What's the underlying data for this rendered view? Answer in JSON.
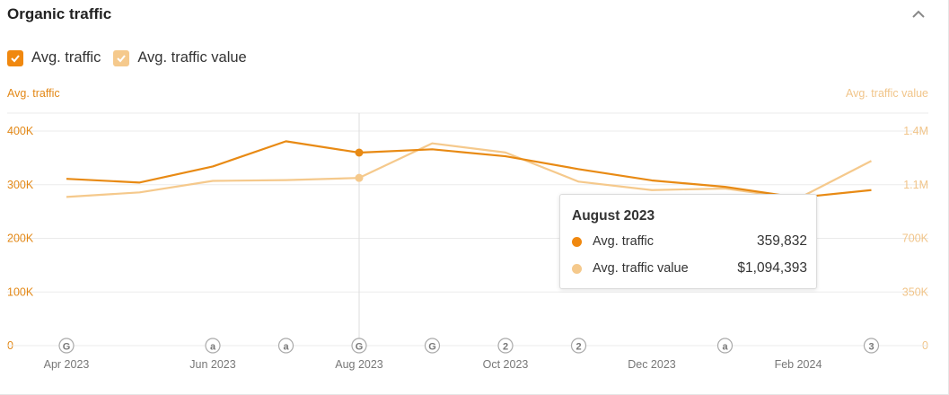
{
  "header": {
    "title": "Organic traffic",
    "collapse_icon": "chevron-up-icon"
  },
  "legend": {
    "items": [
      {
        "label": "Avg. traffic",
        "checked": true,
        "color": "#f0880f"
      },
      {
        "label": "Avg. traffic value",
        "checked": true,
        "color": "#f5c98c"
      }
    ]
  },
  "colors": {
    "traffic": "#e88a14",
    "traffic_value": "#f5c98c",
    "grid": "#ebebeb",
    "right_axis": "#f1c58a",
    "left_axis": "#e38816",
    "tick": "#777777"
  },
  "chart_data": {
    "type": "line",
    "title": "Organic traffic",
    "x_ticks": [
      "Apr 2023",
      "Jun 2023",
      "Aug 2023",
      "Oct 2023",
      "Dec 2023",
      "Feb 2024"
    ],
    "left_axis": {
      "label": "Avg. traffic",
      "ticks": [
        "400K",
        "300K",
        "200K",
        "100K",
        "0"
      ],
      "range": [
        0,
        400000
      ]
    },
    "right_axis": {
      "label": "Avg. traffic value",
      "ticks": [
        "1.4M",
        "1.1M",
        "700K",
        "350K",
        "0"
      ],
      "range": [
        0,
        1400000
      ]
    },
    "x": [
      "Apr 2023",
      "May 2023",
      "Jun 2023",
      "Jul 2023",
      "Aug 2023",
      "Sep 2023",
      "Oct 2023",
      "Nov 2023",
      "Dec 2023",
      "Jan 2024",
      "Feb 2024",
      "Mar 2024"
    ],
    "series": [
      {
        "name": "Avg. traffic",
        "axis": "left",
        "values": [
          311000,
          304000,
          334000,
          381000,
          359832,
          366000,
          353000,
          329000,
          308000,
          296000,
          276000,
          290000
        ]
      },
      {
        "name": "Avg. traffic value",
        "axis": "right",
        "values": [
          970000,
          1000000,
          1075000,
          1080000,
          1094393,
          1320000,
          1260000,
          1070000,
          1015000,
          1025000,
          960000,
          1205000
        ]
      }
    ],
    "annotations": [
      {
        "at": "Apr 2023",
        "label": "G"
      },
      {
        "at": "Jun 2023",
        "label": "a"
      },
      {
        "at": "Jul 2023",
        "label": "a"
      },
      {
        "at": "Aug 2023",
        "label": "G"
      },
      {
        "at": "Sep 2023",
        "label": "G"
      },
      {
        "at": "Oct 2023",
        "label": "2"
      },
      {
        "at": "Nov 2023",
        "label": "2"
      },
      {
        "at": "Jan 2024",
        "label": "a"
      },
      {
        "at": "Mar 2024",
        "label": "3"
      }
    ],
    "hover_index": 4
  },
  "tooltip": {
    "title": "August 2023",
    "rows": [
      {
        "label": "Avg. traffic",
        "value": "359,832"
      },
      {
        "label": "Avg. traffic value",
        "value": "$1,094,393"
      }
    ]
  }
}
